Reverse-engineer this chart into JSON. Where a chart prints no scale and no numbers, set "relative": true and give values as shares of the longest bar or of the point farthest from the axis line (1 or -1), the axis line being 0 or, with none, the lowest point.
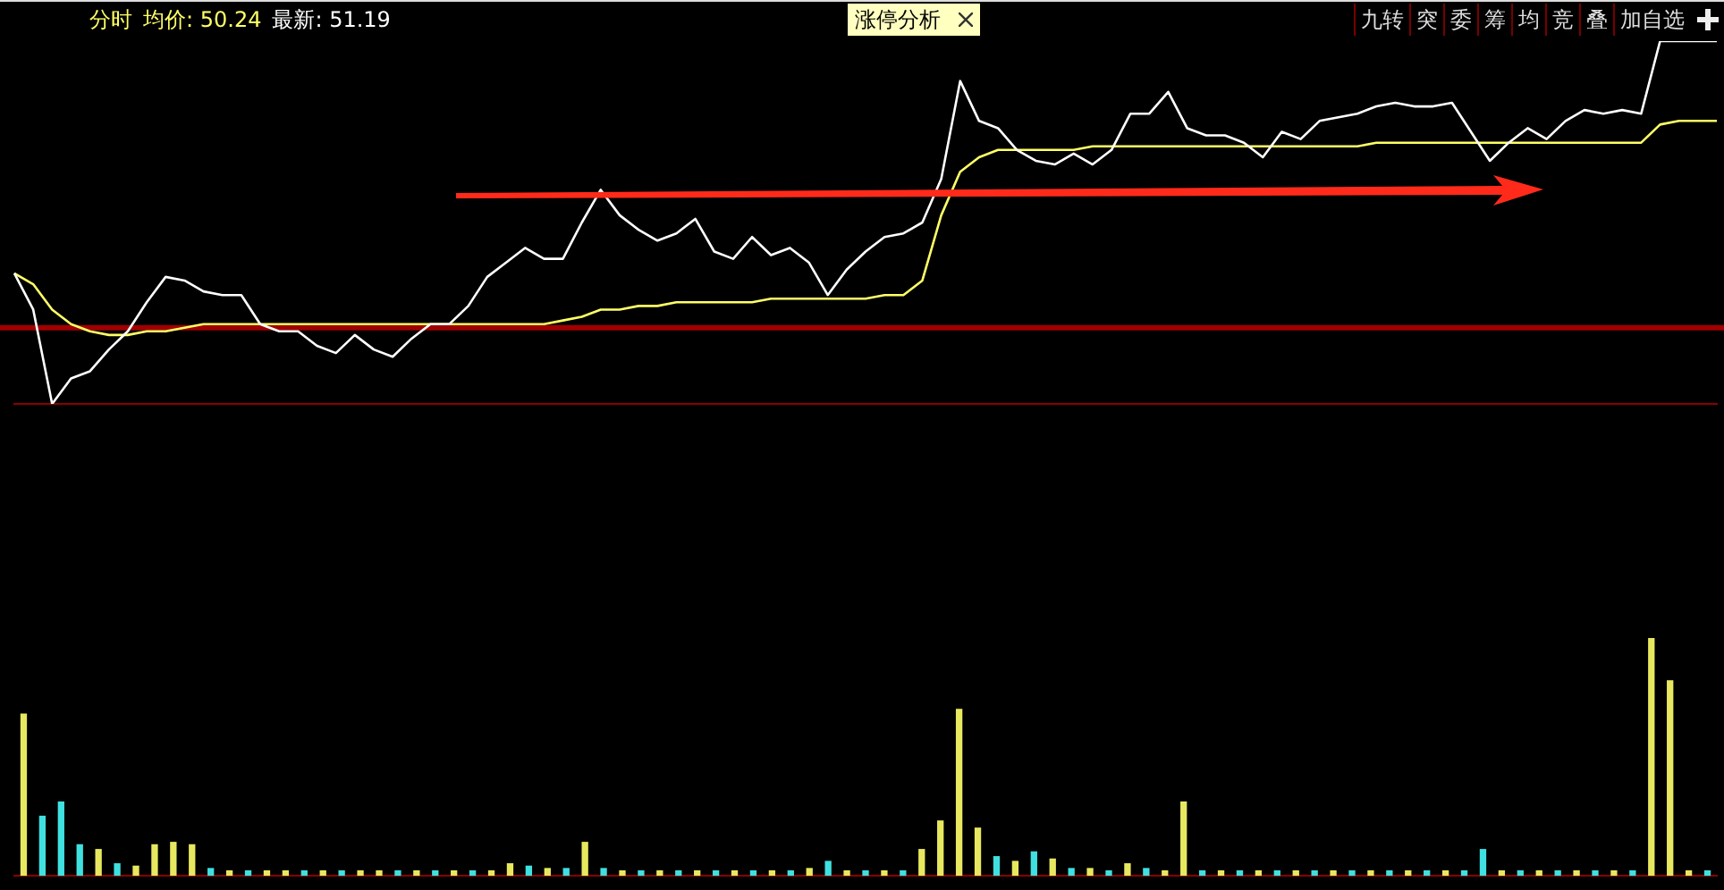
{
  "chart_data": [
    {
      "type": "line",
      "relative": true,
      "annotations": [
        "分时",
        "均价: 50.24",
        "最新: 51.19",
        "涨停分析",
        "九转",
        "突",
        "委",
        "筹",
        "均",
        "竞",
        "叠",
        "加自选"
      ],
      "tick_labels": false,
      "marker": "none",
      "line_style": "solid",
      "categories": [
        null,
        null,
        null,
        null,
        null,
        null,
        null,
        null,
        null,
        null,
        null,
        null,
        null,
        null,
        null,
        null,
        null,
        null,
        null,
        null,
        null,
        null,
        null,
        null,
        null,
        null,
        null,
        null,
        null,
        null,
        null,
        null,
        null,
        null,
        null,
        null,
        null,
        null,
        null,
        null,
        null,
        null,
        null,
        null,
        null,
        null,
        null,
        null,
        null,
        null,
        null,
        null,
        null,
        null,
        null,
        null,
        null,
        null,
        null,
        null,
        null,
        null,
        null,
        null,
        null,
        null,
        null,
        null,
        null,
        null,
        null,
        null,
        null,
        null,
        null,
        null,
        null,
        null,
        null,
        null,
        null,
        null,
        null,
        null,
        null,
        null,
        null,
        null,
        null,
        null,
        null
      ],
      "ref_lines": [
        {
          "axis": "y",
          "value": 0.21,
          "color": "#a00000"
        }
      ],
      "series": [
        {
          "color": "#ffffff",
          "values": [
            0.36,
            0.26,
            0,
            0.07,
            0.09,
            0.15,
            0.2,
            0.28,
            0.35,
            0.34,
            0.31,
            0.3,
            0.3,
            0.22,
            0.2,
            0.2,
            0.16,
            0.14,
            0.19,
            0.15,
            0.13,
            0.18,
            0.22,
            0.22,
            0.27,
            0.35,
            0.39,
            0.43,
            0.4,
            0.4,
            0.5,
            0.59,
            0.52,
            0.48,
            0.45,
            0.47,
            0.51,
            0.42,
            0.4,
            0.46,
            0.41,
            0.43,
            0.39,
            0.3,
            0.37,
            0.42,
            0.46,
            0.47,
            0.5,
            0.62,
            0.89,
            0.78,
            0.76,
            0.7,
            0.67,
            0.66,
            0.69,
            0.66,
            0.7,
            0.8,
            0.8,
            0.86,
            0.76,
            0.74,
            0.74,
            0.72,
            0.68,
            0.75,
            0.73,
            0.78,
            0.79,
            0.8,
            0.82,
            0.83,
            0.82,
            0.82,
            0.83,
            0.75,
            0.67,
            0.72,
            0.76,
            0.73,
            0.78,
            0.81,
            0.8,
            0.81,
            0.8,
            1,
            1,
            1,
            1
          ]
        },
        {
          "color": "#ffff66",
          "values": [
            0.36,
            0.33,
            0.26,
            0.22,
            0.2,
            0.19,
            0.19,
            0.2,
            0.2,
            0.21,
            0.22,
            0.22,
            0.22,
            0.22,
            0.22,
            0.22,
            0.22,
            0.22,
            0.22,
            0.22,
            0.22,
            0.22,
            0.22,
            0.22,
            0.22,
            0.22,
            0.22,
            0.22,
            0.22,
            0.23,
            0.24,
            0.26,
            0.26,
            0.27,
            0.27,
            0.28,
            0.28,
            0.28,
            0.28,
            0.28,
            0.29,
            0.29,
            0.29,
            0.29,
            0.29,
            0.29,
            0.3,
            0.3,
            0.34,
            0.52,
            0.64,
            0.68,
            0.7,
            0.7,
            0.7,
            0.7,
            0.7,
            0.71,
            0.71,
            0.71,
            0.71,
            0.71,
            0.71,
            0.71,
            0.71,
            0.71,
            0.71,
            0.71,
            0.71,
            0.71,
            0.71,
            0.71,
            0.72,
            0.72,
            0.72,
            0.72,
            0.72,
            0.72,
            0.72,
            0.72,
            0.72,
            0.72,
            0.72,
            0.72,
            0.72,
            0.72,
            0.72,
            0.77,
            0.78,
            0.78,
            0.78
          ]
        }
      ]
    },
    {
      "type": "bar",
      "relative": true,
      "tick_labels": false,
      "categories": [
        null,
        null,
        null,
        null,
        null,
        null,
        null,
        null,
        null,
        null,
        null,
        null,
        null,
        null,
        null,
        null,
        null,
        null,
        null,
        null,
        null,
        null,
        null,
        null,
        null,
        null,
        null,
        null,
        null,
        null,
        null,
        null,
        null,
        null,
        null,
        null,
        null,
        null,
        null,
        null,
        null,
        null,
        null,
        null,
        null,
        null,
        null,
        null,
        null,
        null,
        null,
        null,
        null,
        null,
        null,
        null,
        null,
        null,
        null,
        null,
        null,
        null,
        null,
        null,
        null,
        null,
        null,
        null,
        null,
        null,
        null,
        null,
        null,
        null,
        null,
        null,
        null,
        null,
        null,
        null,
        null,
        null,
        null,
        null,
        null,
        null,
        null,
        null,
        null,
        null,
        null
      ],
      "values": [
        0.68,
        0.25,
        0.31,
        0.13,
        0.11,
        0.05,
        0.04,
        0.13,
        0.14,
        0.13,
        0.03,
        0.02,
        0.02,
        0.02,
        0.02,
        0.02,
        0.02,
        0.02,
        0.02,
        0.02,
        0.02,
        0.02,
        0.02,
        0.02,
        0.02,
        0.02,
        0.05,
        0.04,
        0.03,
        0.03,
        0.14,
        0.03,
        0.02,
        0.02,
        0.02,
        0.02,
        0.02,
        0.02,
        0.02,
        0.02,
        0.02,
        0.02,
        0.03,
        0.06,
        0.02,
        0.02,
        0.02,
        0.02,
        0.11,
        0.23,
        0.7,
        0.2,
        0.08,
        0.06,
        0.1,
        0.07,
        0.03,
        0.03,
        0.02,
        0.05,
        0.03,
        0.02,
        0.31,
        0.02,
        0.02,
        0.02,
        0.02,
        0.02,
        0.02,
        0.02,
        0.02,
        0.02,
        0.02,
        0.02,
        0.02,
        0.02,
        0.02,
        0.02,
        0.11,
        0.02,
        0.02,
        0.02,
        0.02,
        0.02,
        0.02,
        0.02,
        0.02,
        1,
        0.82,
        0.02,
        0.02
      ],
      "colors": [
        "#e8e860",
        "#40e0e0",
        "#40e0e0",
        "#40e0e0",
        "#e8e860",
        "#40e0e0",
        "#e8e860",
        "#e8e860",
        "#e8e860",
        "#e8e860",
        "#40e0e0",
        "#e8e860",
        "#40e0e0",
        "#e8e860",
        "#e8e860",
        "#40e0e0",
        "#e8e860",
        "#40e0e0",
        "#e8e860",
        "#e8e860",
        "#40e0e0",
        "#e8e860",
        "#40e0e0",
        "#e8e860",
        "#40e0e0",
        "#e8e860",
        "#e8e860",
        "#40e0e0",
        "#e8e860",
        "#40e0e0",
        "#e8e860",
        "#40e0e0",
        "#e8e860",
        "#40e0e0",
        "#e8e860",
        "#40e0e0",
        "#e8e860",
        "#40e0e0",
        "#e8e860",
        "#40e0e0",
        "#e8e860",
        "#40e0e0",
        "#e8e860",
        "#40e0e0",
        "#e8e860",
        "#40e0e0",
        "#e8e860",
        "#40e0e0",
        "#e8e860",
        "#e8e860",
        "#e8e860",
        "#e8e860",
        "#40e0e0",
        "#e8e860",
        "#40e0e0",
        "#e8e860",
        "#40e0e0",
        "#e8e860",
        "#40e0e0",
        "#e8e860",
        "#40e0e0",
        "#e8e860",
        "#e8e860",
        "#40e0e0",
        "#e8e860",
        "#40e0e0",
        "#e8e860",
        "#40e0e0",
        "#e8e860",
        "#40e0e0",
        "#e8e860",
        "#40e0e0",
        "#e8e860",
        "#40e0e0",
        "#e8e860",
        "#40e0e0",
        "#e8e860",
        "#40e0e0",
        "#40e0e0",
        "#e8e860",
        "#40e0e0",
        "#e8e860",
        "#40e0e0",
        "#e8e860",
        "#40e0e0",
        "#e8e860",
        "#40e0e0",
        "#e8e860",
        "#e8e860",
        "#e8e860",
        "#40e0e0"
      ]
    }
  ]
}
